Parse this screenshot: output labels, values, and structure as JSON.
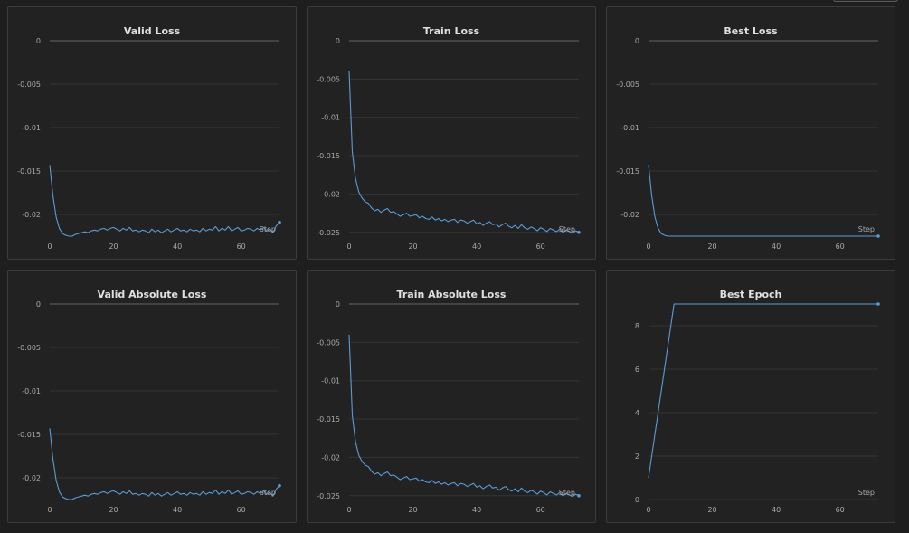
{
  "chart_data": [
    {
      "type": "line",
      "title": "Valid Loss",
      "xlabel": "Step",
      "ylabel": "",
      "xlim": [
        0,
        72
      ],
      "ylim": [
        -0.0225,
        0
      ],
      "xticks": [
        0,
        20,
        40,
        60
      ],
      "yticks": [
        0,
        -0.005,
        -0.01,
        -0.015,
        -0.02
      ],
      "ytick_labels": [
        "0",
        "-0.005",
        "-0.01",
        "-0.015",
        "-0.02"
      ],
      "color": "#5b9bd5",
      "zero_line": true,
      "x": [
        0,
        1,
        2,
        3,
        4,
        5,
        6,
        7,
        8,
        9,
        10,
        11,
        12,
        13,
        14,
        15,
        16,
        17,
        18,
        19,
        20,
        21,
        22,
        23,
        24,
        25,
        26,
        27,
        28,
        29,
        30,
        31,
        32,
        33,
        34,
        35,
        36,
        37,
        38,
        39,
        40,
        41,
        42,
        43,
        44,
        45,
        46,
        47,
        48,
        49,
        50,
        51,
        52,
        53,
        54,
        55,
        56,
        57,
        58,
        59,
        60,
        61,
        62,
        63,
        64,
        65,
        66,
        67,
        68,
        69,
        70,
        71,
        72
      ],
      "y": [
        -0.0143,
        -0.0178,
        -0.0203,
        -0.0216,
        -0.0222,
        -0.0224,
        -0.0225,
        -0.0225,
        -0.0223,
        -0.0222,
        -0.0221,
        -0.022,
        -0.0221,
        -0.0219,
        -0.0218,
        -0.0219,
        -0.0217,
        -0.0216,
        -0.0218,
        -0.0216,
        -0.0215,
        -0.0217,
        -0.0219,
        -0.0216,
        -0.0218,
        -0.0215,
        -0.0219,
        -0.0218,
        -0.022,
        -0.0218,
        -0.0219,
        -0.0221,
        -0.0217,
        -0.022,
        -0.0218,
        -0.0221,
        -0.0219,
        -0.0217,
        -0.022,
        -0.0218,
        -0.0216,
        -0.0219,
        -0.0218,
        -0.022,
        -0.0217,
        -0.0219,
        -0.0218,
        -0.022,
        -0.0216,
        -0.0219,
        -0.0217,
        -0.0218,
        -0.0214,
        -0.0219,
        -0.0216,
        -0.0218,
        -0.0214,
        -0.0219,
        -0.0217,
        -0.0215,
        -0.0219,
        -0.0218,
        -0.0216,
        -0.0217,
        -0.0219,
        -0.0216,
        -0.0218,
        -0.0215,
        -0.0219,
        -0.0217,
        -0.0221,
        -0.0213,
        -0.0209
      ]
    },
    {
      "type": "line",
      "title": "Train Loss",
      "xlabel": "Step",
      "ylabel": "",
      "xlim": [
        0,
        72
      ],
      "ylim": [
        -0.0255,
        0
      ],
      "xticks": [
        0,
        20,
        40,
        60
      ],
      "yticks": [
        0,
        -0.005,
        -0.01,
        -0.015,
        -0.02,
        -0.025
      ],
      "ytick_labels": [
        "0",
        "-0.005",
        "-0.01",
        "-0.015",
        "-0.02",
        "-0.025"
      ],
      "color": "#5b9bd5",
      "zero_line": true,
      "x": [
        0,
        1,
        2,
        3,
        4,
        5,
        6,
        7,
        8,
        9,
        10,
        11,
        12,
        13,
        14,
        15,
        16,
        17,
        18,
        19,
        20,
        21,
        22,
        23,
        24,
        25,
        26,
        27,
        28,
        29,
        30,
        31,
        32,
        33,
        34,
        35,
        36,
        37,
        38,
        39,
        40,
        41,
        42,
        43,
        44,
        45,
        46,
        47,
        48,
        49,
        50,
        51,
        52,
        53,
        54,
        55,
        56,
        57,
        58,
        59,
        60,
        61,
        62,
        63,
        64,
        65,
        66,
        67,
        68,
        69,
        70,
        71,
        72
      ],
      "y": [
        -0.004,
        -0.0145,
        -0.018,
        -0.0197,
        -0.0205,
        -0.021,
        -0.0212,
        -0.0218,
        -0.0222,
        -0.022,
        -0.0224,
        -0.0221,
        -0.0219,
        -0.0224,
        -0.0223,
        -0.0226,
        -0.0229,
        -0.0227,
        -0.0225,
        -0.0229,
        -0.0228,
        -0.0227,
        -0.0231,
        -0.0229,
        -0.0232,
        -0.0233,
        -0.023,
        -0.0234,
        -0.0232,
        -0.0235,
        -0.0233,
        -0.0236,
        -0.0234,
        -0.0233,
        -0.0237,
        -0.0234,
        -0.0235,
        -0.0238,
        -0.0236,
        -0.0234,
        -0.0239,
        -0.0237,
        -0.0241,
        -0.0238,
        -0.0236,
        -0.024,
        -0.0239,
        -0.0243,
        -0.024,
        -0.0238,
        -0.0242,
        -0.0244,
        -0.0241,
        -0.0245,
        -0.024,
        -0.0244,
        -0.0246,
        -0.0243,
        -0.0245,
        -0.0248,
        -0.0244,
        -0.0246,
        -0.0249,
        -0.0245,
        -0.0247,
        -0.0249,
        -0.0246,
        -0.025,
        -0.0247,
        -0.0249,
        -0.0251,
        -0.0248,
        -0.025
      ]
    },
    {
      "type": "line",
      "title": "Best Loss",
      "xlabel": "Step",
      "ylabel": "",
      "xlim": [
        0,
        72
      ],
      "ylim": [
        -0.0225,
        0
      ],
      "xticks": [
        0,
        20,
        40,
        60
      ],
      "yticks": [
        0,
        -0.005,
        -0.01,
        -0.015,
        -0.02
      ],
      "ytick_labels": [
        "0",
        "-0.005",
        "-0.01",
        "-0.015",
        "-0.02"
      ],
      "color": "#5b9bd5",
      "zero_line": true,
      "x": [
        0,
        1,
        2,
        3,
        4,
        5,
        6,
        7,
        8,
        10,
        20,
        30,
        40,
        50,
        60,
        70,
        72
      ],
      "y": [
        -0.0143,
        -0.0178,
        -0.0203,
        -0.0216,
        -0.0222,
        -0.0224,
        -0.0225,
        -0.0225,
        -0.0225,
        -0.0225,
        -0.0225,
        -0.0225,
        -0.0225,
        -0.0225,
        -0.0225,
        -0.0225,
        -0.0225
      ]
    },
    {
      "type": "line",
      "title": "Valid Absolute Loss",
      "xlabel": "Step",
      "ylabel": "",
      "xlim": [
        0,
        72
      ],
      "ylim": [
        -0.0225,
        0
      ],
      "xticks": [
        0,
        20,
        40,
        60
      ],
      "yticks": [
        0,
        -0.005,
        -0.01,
        -0.015,
        -0.02
      ],
      "ytick_labels": [
        "0",
        "-0.005",
        "-0.01",
        "-0.015",
        "-0.02"
      ],
      "color": "#5b9bd5",
      "zero_line": true,
      "x": [
        0,
        1,
        2,
        3,
        4,
        5,
        6,
        7,
        8,
        9,
        10,
        11,
        12,
        13,
        14,
        15,
        16,
        17,
        18,
        19,
        20,
        21,
        22,
        23,
        24,
        25,
        26,
        27,
        28,
        29,
        30,
        31,
        32,
        33,
        34,
        35,
        36,
        37,
        38,
        39,
        40,
        41,
        42,
        43,
        44,
        45,
        46,
        47,
        48,
        49,
        50,
        51,
        52,
        53,
        54,
        55,
        56,
        57,
        58,
        59,
        60,
        61,
        62,
        63,
        64,
        65,
        66,
        67,
        68,
        69,
        70,
        71,
        72
      ],
      "y": [
        -0.0143,
        -0.0178,
        -0.0203,
        -0.0216,
        -0.0222,
        -0.0224,
        -0.0225,
        -0.0225,
        -0.0223,
        -0.0222,
        -0.0221,
        -0.022,
        -0.0221,
        -0.0219,
        -0.0218,
        -0.0219,
        -0.0217,
        -0.0216,
        -0.0218,
        -0.0216,
        -0.0215,
        -0.0217,
        -0.0219,
        -0.0216,
        -0.0218,
        -0.0215,
        -0.0219,
        -0.0218,
        -0.022,
        -0.0218,
        -0.0219,
        -0.0221,
        -0.0217,
        -0.022,
        -0.0218,
        -0.0221,
        -0.0219,
        -0.0217,
        -0.022,
        -0.0218,
        -0.0216,
        -0.0219,
        -0.0218,
        -0.022,
        -0.0217,
        -0.0219,
        -0.0218,
        -0.022,
        -0.0216,
        -0.0219,
        -0.0217,
        -0.0218,
        -0.0214,
        -0.0219,
        -0.0216,
        -0.0218,
        -0.0214,
        -0.0219,
        -0.0217,
        -0.0215,
        -0.0219,
        -0.0218,
        -0.0216,
        -0.0217,
        -0.0219,
        -0.0216,
        -0.0218,
        -0.0215,
        -0.0219,
        -0.0217,
        -0.0221,
        -0.0213,
        -0.0209
      ]
    },
    {
      "type": "line",
      "title": "Train Absolute Loss",
      "xlabel": "Step",
      "ylabel": "",
      "xlim": [
        0,
        72
      ],
      "ylim": [
        -0.0255,
        0
      ],
      "xticks": [
        0,
        20,
        40,
        60
      ],
      "yticks": [
        0,
        -0.005,
        -0.01,
        -0.015,
        -0.02,
        -0.025
      ],
      "ytick_labels": [
        "0",
        "-0.005",
        "-0.01",
        "-0.015",
        "-0.02",
        "-0.025"
      ],
      "color": "#5b9bd5",
      "zero_line": true,
      "x": [
        0,
        1,
        2,
        3,
        4,
        5,
        6,
        7,
        8,
        9,
        10,
        11,
        12,
        13,
        14,
        15,
        16,
        17,
        18,
        19,
        20,
        21,
        22,
        23,
        24,
        25,
        26,
        27,
        28,
        29,
        30,
        31,
        32,
        33,
        34,
        35,
        36,
        37,
        38,
        39,
        40,
        41,
        42,
        43,
        44,
        45,
        46,
        47,
        48,
        49,
        50,
        51,
        52,
        53,
        54,
        55,
        56,
        57,
        58,
        59,
        60,
        61,
        62,
        63,
        64,
        65,
        66,
        67,
        68,
        69,
        70,
        71,
        72
      ],
      "y": [
        -0.004,
        -0.0145,
        -0.018,
        -0.0197,
        -0.0205,
        -0.021,
        -0.0212,
        -0.0218,
        -0.0222,
        -0.022,
        -0.0224,
        -0.0221,
        -0.0219,
        -0.0224,
        -0.0223,
        -0.0226,
        -0.0229,
        -0.0227,
        -0.0225,
        -0.0229,
        -0.0228,
        -0.0227,
        -0.0231,
        -0.0229,
        -0.0232,
        -0.0233,
        -0.023,
        -0.0234,
        -0.0232,
        -0.0235,
        -0.0233,
        -0.0236,
        -0.0234,
        -0.0233,
        -0.0237,
        -0.0234,
        -0.0235,
        -0.0238,
        -0.0236,
        -0.0234,
        -0.0239,
        -0.0237,
        -0.0241,
        -0.0238,
        -0.0236,
        -0.024,
        -0.0239,
        -0.0243,
        -0.024,
        -0.0238,
        -0.0242,
        -0.0244,
        -0.0241,
        -0.0245,
        -0.024,
        -0.0244,
        -0.0246,
        -0.0243,
        -0.0245,
        -0.0248,
        -0.0244,
        -0.0246,
        -0.0249,
        -0.0245,
        -0.0247,
        -0.0249,
        -0.0246,
        -0.025,
        -0.0247,
        -0.0249,
        -0.0251,
        -0.0248,
        -0.025
      ]
    },
    {
      "type": "line",
      "title": "Best Epoch",
      "xlabel": "Step",
      "ylabel": "",
      "xlim": [
        0,
        72
      ],
      "ylim": [
        0,
        9
      ],
      "xticks": [
        0,
        20,
        40,
        60
      ],
      "yticks": [
        0,
        2,
        4,
        6,
        8
      ],
      "ytick_labels": [
        "0",
        "2",
        "4",
        "6",
        "8"
      ],
      "color": "#5b9bd5",
      "zero_line": false,
      "x": [
        0,
        8,
        72
      ],
      "y": [
        1,
        9,
        9
      ]
    }
  ]
}
